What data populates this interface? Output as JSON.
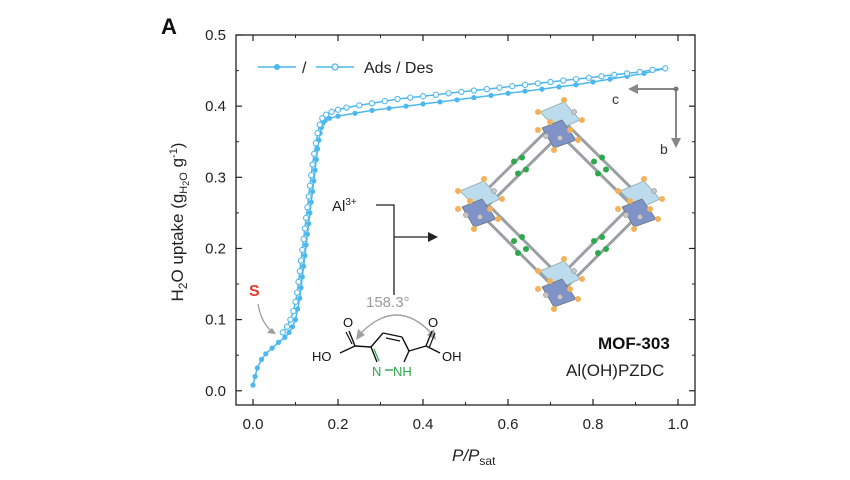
{
  "panel_label": "A",
  "colors": {
    "series": "#4db8ee",
    "highlight": "#e23b2e",
    "angle": "#a0a0a0",
    "nitrogen": "#2ea84a",
    "crystal_blue": "#7f93c9",
    "crystal_light": "#bcdcee",
    "crystal_orange": "#f3b25a"
  },
  "chart_data": {
    "type": "line",
    "xlabel": "P/P",
    "xlabel_sub": "sat",
    "ylabel": "H",
    "ylabel_parts": [
      "H",
      "2",
      "O uptake (g",
      "H",
      "2",
      "O",
      " g",
      "-1",
      ")"
    ],
    "xlim": [
      -0.04,
      1.04
    ],
    "ylim": [
      -0.02,
      0.5
    ],
    "x_ticks": [
      0.0,
      0.2,
      0.4,
      0.6,
      0.8,
      1.0
    ],
    "x_tick_labels": [
      "0.0",
      "0.2",
      "0.4",
      "0.6",
      "0.8",
      "1.0"
    ],
    "y_ticks": [
      0.0,
      0.1,
      0.2,
      0.3,
      0.4,
      0.5
    ],
    "y_tick_labels": [
      "0.0",
      "0.1",
      "0.2",
      "0.3",
      "0.4",
      "0.5"
    ],
    "legend": {
      "text": "/",
      "label": "Ads / Des",
      "placement": "top-left"
    },
    "series": [
      {
        "name": "Ads",
        "marker": "filled",
        "x": [
          0.0,
          0.005,
          0.01,
          0.02,
          0.03,
          0.045,
          0.06,
          0.075,
          0.085,
          0.093,
          0.1,
          0.105,
          0.11,
          0.113,
          0.116,
          0.119,
          0.122,
          0.125,
          0.128,
          0.131,
          0.134,
          0.137,
          0.14,
          0.143,
          0.146,
          0.149,
          0.152,
          0.155,
          0.158,
          0.161,
          0.165,
          0.17,
          0.18,
          0.2,
          0.24,
          0.28,
          0.32,
          0.36,
          0.4,
          0.44,
          0.48,
          0.52,
          0.56,
          0.6,
          0.64,
          0.68,
          0.72,
          0.76,
          0.8,
          0.84,
          0.88,
          0.92,
          0.97
        ],
        "y": [
          0.008,
          0.02,
          0.032,
          0.044,
          0.052,
          0.06,
          0.068,
          0.075,
          0.082,
          0.09,
          0.1,
          0.115,
          0.13,
          0.145,
          0.16,
          0.175,
          0.19,
          0.205,
          0.22,
          0.235,
          0.25,
          0.265,
          0.28,
          0.295,
          0.31,
          0.325,
          0.34,
          0.352,
          0.362,
          0.37,
          0.376,
          0.38,
          0.383,
          0.386,
          0.39,
          0.394,
          0.397,
          0.4,
          0.403,
          0.406,
          0.409,
          0.412,
          0.415,
          0.418,
          0.421,
          0.424,
          0.427,
          0.43,
          0.434,
          0.438,
          0.442,
          0.446,
          0.453
        ]
      },
      {
        "name": "Des",
        "marker": "open",
        "x": [
          0.97,
          0.94,
          0.91,
          0.88,
          0.85,
          0.82,
          0.79,
          0.76,
          0.73,
          0.7,
          0.67,
          0.64,
          0.61,
          0.58,
          0.55,
          0.52,
          0.49,
          0.46,
          0.43,
          0.4,
          0.37,
          0.34,
          0.31,
          0.28,
          0.25,
          0.22,
          0.2,
          0.185,
          0.172,
          0.163,
          0.157,
          0.152,
          0.148,
          0.144,
          0.14,
          0.137,
          0.134,
          0.131,
          0.128,
          0.125,
          0.122,
          0.119,
          0.116,
          0.113,
          0.11,
          0.107,
          0.104,
          0.1,
          0.095,
          0.088,
          0.08,
          0.07
        ],
        "y": [
          0.453,
          0.451,
          0.448,
          0.446,
          0.444,
          0.442,
          0.44,
          0.438,
          0.436,
          0.434,
          0.432,
          0.43,
          0.428,
          0.426,
          0.424,
          0.422,
          0.42,
          0.418,
          0.416,
          0.414,
          0.412,
          0.41,
          0.407,
          0.404,
          0.401,
          0.398,
          0.395,
          0.392,
          0.388,
          0.383,
          0.374,
          0.362,
          0.348,
          0.333,
          0.318,
          0.303,
          0.288,
          0.273,
          0.258,
          0.243,
          0.228,
          0.213,
          0.198,
          0.183,
          0.168,
          0.153,
          0.138,
          0.125,
          0.112,
          0.1,
          0.09,
          0.082
        ]
      }
    ]
  },
  "annotations": {
    "s_label": "S",
    "metal_ion": "Al",
    "metal_charge": "3+",
    "angle": "158.3°",
    "mof_name": "MOF-303",
    "mof_formula": "Al(OH)PZDC",
    "axis_c": "c",
    "axis_b": "b",
    "ligand": {
      "left_oh": "HO",
      "right_oh": "OH",
      "o_left": "O",
      "o_right": "O",
      "n_left": "N",
      "nh": "NH"
    }
  }
}
